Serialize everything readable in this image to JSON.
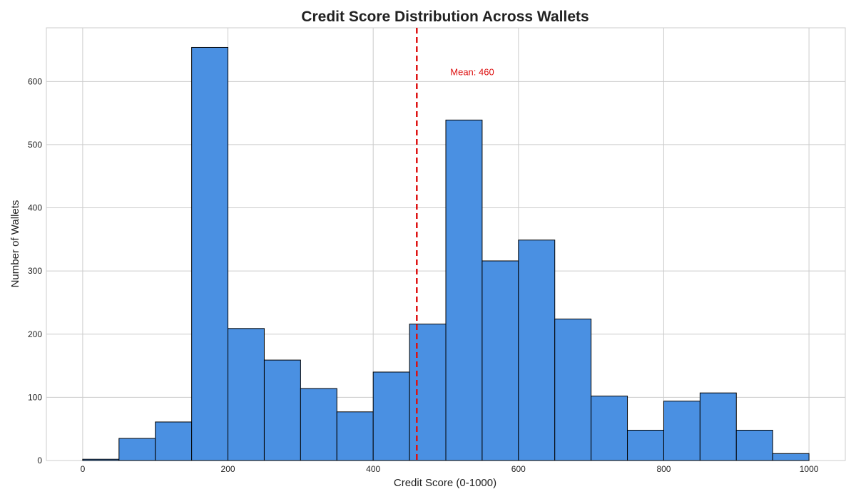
{
  "chart_data": {
    "type": "bar",
    "title": "Credit Score Distribution Across Wallets",
    "xlabel": "Credit Score (0-1000)",
    "ylabel": "Number of Wallets",
    "xlim": [
      -50,
      1050
    ],
    "ylim": [
      0,
      685
    ],
    "x_ticks": [
      0,
      200,
      400,
      600,
      800,
      1000
    ],
    "y_ticks": [
      0,
      100,
      200,
      300,
      400,
      500,
      600
    ],
    "bin_width": 50,
    "bins": [
      {
        "start": 0,
        "end": 50,
        "count": 2
      },
      {
        "start": 50,
        "end": 100,
        "count": 35
      },
      {
        "start": 100,
        "end": 150,
        "count": 61
      },
      {
        "start": 150,
        "end": 200,
        "count": 654
      },
      {
        "start": 200,
        "end": 250,
        "count": 209
      },
      {
        "start": 250,
        "end": 300,
        "count": 159
      },
      {
        "start": 300,
        "end": 350,
        "count": 114
      },
      {
        "start": 350,
        "end": 400,
        "count": 77
      },
      {
        "start": 400,
        "end": 450,
        "count": 140
      },
      {
        "start": 450,
        "end": 500,
        "count": 216
      },
      {
        "start": 500,
        "end": 550,
        "count": 539
      },
      {
        "start": 550,
        "end": 600,
        "count": 316
      },
      {
        "start": 600,
        "end": 650,
        "count": 349
      },
      {
        "start": 650,
        "end": 700,
        "count": 224
      },
      {
        "start": 700,
        "end": 750,
        "count": 102
      },
      {
        "start": 750,
        "end": 800,
        "count": 48
      },
      {
        "start": 800,
        "end": 850,
        "count": 94
      },
      {
        "start": 850,
        "end": 900,
        "count": 107
      },
      {
        "start": 900,
        "end": 950,
        "count": 48
      },
      {
        "start": 950,
        "end": 1000,
        "count": 11
      }
    ],
    "mean": {
      "value": 460,
      "label": "Mean: 460"
    },
    "grid": true,
    "colors": {
      "bar": "#4a90e2",
      "edge": "#000000",
      "mean_line": "#dd1111",
      "grid": "#cccccc"
    }
  }
}
